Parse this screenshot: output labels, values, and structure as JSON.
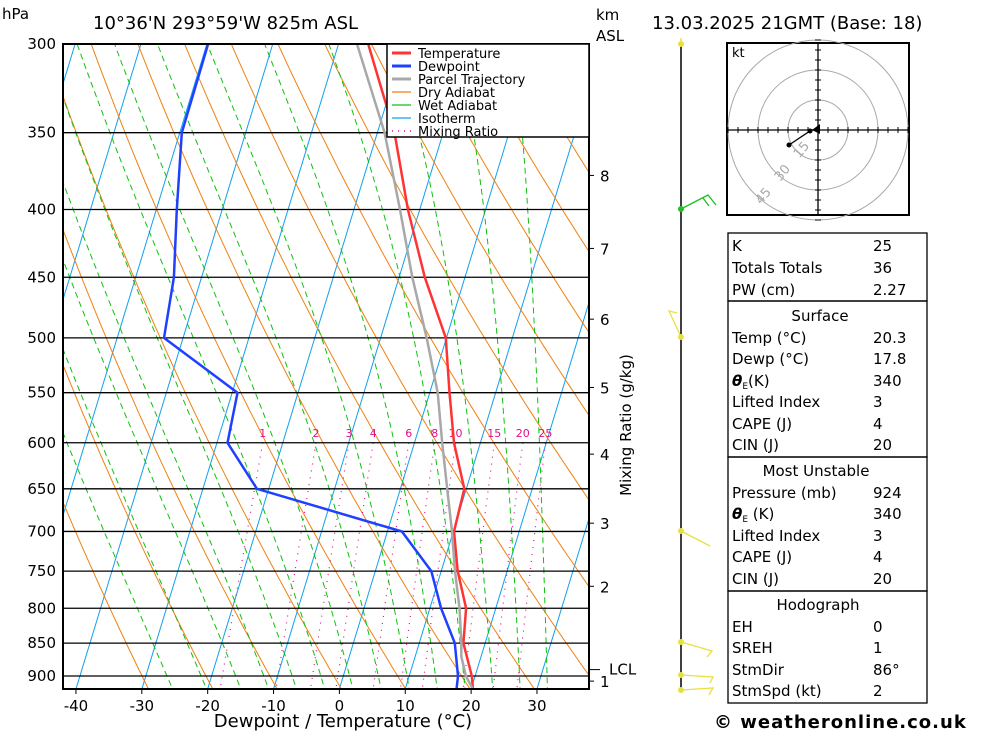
{
  "header": {
    "pressure_unit": "hPa",
    "location": "10°36'N 293°59'W 825m ASL",
    "height_unit": "km",
    "height_ref": "ASL",
    "datetime": "13.03.2025 21GMT (Base: 18)"
  },
  "colors": {
    "temperature": "#ff3333",
    "dewpoint": "#2040ff",
    "parcel": "#a8a8a8",
    "dry_adiabat": "#f08010",
    "wet_adiabat": "#10c010",
    "isotherm": "#10a0f0",
    "mixing_ratio": "#e0108a",
    "wind_low": "#e8e040",
    "wind_high": "#20c020"
  },
  "chart_data": {
    "type": "line",
    "title": "10°36'N 293°59'W 825m ASL",
    "xlabel": "Dewpoint / Temperature (°C)",
    "ylabel": "hPa",
    "y2label": "Mixing Ratio (g/kg)",
    "xlim": [
      -43,
      38
    ],
    "ylim": [
      921,
      300
    ],
    "x_ticks": [
      -40,
      -30,
      -20,
      -10,
      0,
      10,
      20,
      30
    ],
    "pressure_ticks": [
      300,
      350,
      400,
      450,
      500,
      550,
      600,
      650,
      700,
      750,
      800,
      850,
      900
    ],
    "km_ticks": [
      {
        "km": "8",
        "p": 377
      },
      {
        "km": "7",
        "p": 428
      },
      {
        "km": "6",
        "p": 484
      },
      {
        "km": "5",
        "p": 545
      },
      {
        "km": "4",
        "p": 612
      },
      {
        "km": "3",
        "p": 690
      },
      {
        "km": "2",
        "p": 770
      },
      {
        "km": "1",
        "p": 908
      }
    ],
    "lcl": {
      "label": "LCL",
      "p": 890
    },
    "legend": {
      "placement": "top-right",
      "entries": [
        "Temperature",
        "Dewpoint",
        "Parcel Trajectory",
        "Dry Adiabat",
        "Wet Adiabat",
        "Isotherm",
        "Mixing Ratio"
      ]
    },
    "series": [
      {
        "name": "Temperature",
        "p": [
          921,
          900,
          850,
          800,
          750,
          700,
          650,
          600,
          550,
          500,
          450,
          400,
          350,
          300
        ],
        "t": [
          20.3,
          19.5,
          16.7,
          15.5,
          12.5,
          10.1,
          9.7,
          6.0,
          3.0,
          -0.1,
          -6.1,
          -11.8,
          -17.4,
          -25.5
        ]
      },
      {
        "name": "Dewpoint",
        "p": [
          921,
          900,
          850,
          800,
          750,
          700,
          650,
          600,
          550,
          500,
          450,
          400,
          350,
          300
        ],
        "t": [
          17.8,
          17.4,
          15.4,
          11.7,
          8.5,
          2.2,
          -21.8,
          -28.4,
          -29.2,
          -42.9,
          -44.2,
          -46.9,
          -49.7,
          -49.8
        ]
      },
      {
        "name": "Parcel Trajectory",
        "p": [
          921,
          900,
          870,
          850,
          800,
          750,
          700,
          650,
          600,
          550,
          500,
          450,
          400,
          350,
          300
        ],
        "t": [
          20.3,
          18.6,
          17.0,
          16.4,
          14.5,
          12.1,
          9.8,
          7.1,
          4.2,
          1.2,
          -3.0,
          -8.0,
          -13.0,
          -18.9,
          -27.2
        ]
      }
    ],
    "isotherms": [
      -110,
      -100,
      -90,
      -80,
      -70,
      -60,
      -50,
      -40,
      -30,
      -20,
      -10,
      0,
      10,
      20,
      30,
      40
    ],
    "dry_adiabats_theta_k": [
      250,
      260,
      270,
      280,
      290,
      300,
      310,
      320,
      330,
      340,
      350,
      360,
      370,
      380,
      390,
      400,
      410,
      420,
      430,
      440
    ],
    "wet_adiabats_t1000": [
      -20,
      -15,
      -10,
      -6,
      -2,
      2,
      6,
      10,
      14,
      18,
      22,
      26,
      30,
      34
    ],
    "mixing_ratio_lines": {
      "values": [
        1,
        2,
        3,
        4,
        6,
        8,
        10,
        15,
        20,
        25
      ],
      "labels": [
        "1",
        "2",
        "3",
        "4",
        "6",
        "8",
        "10",
        "15",
        "20",
        "25"
      ],
      "from_p": 600
    }
  },
  "hodograph": {
    "unit": "kt",
    "rings": [
      "15",
      "30",
      "45"
    ]
  },
  "indices": {
    "general": [
      {
        "label": "K",
        "value": "25"
      },
      {
        "label": "Totals Totals",
        "value": "36"
      },
      {
        "label": "PW (cm)",
        "value": "2.27"
      }
    ],
    "surface": {
      "title": "Surface",
      "temp": {
        "label": "Temp (°C)",
        "value": "20.3"
      },
      "dewp": {
        "label": "Dewp (°C)",
        "value": "17.8"
      },
      "theta_e": {
        "sym": "θ",
        "sub": "E",
        "rest": "(K)",
        "value": "340"
      },
      "li": {
        "label": "Lifted Index",
        "value": "3"
      },
      "cape": {
        "label": "CAPE (J)",
        "value": "4"
      },
      "cin": {
        "label": "CIN (J)",
        "value": "20"
      }
    },
    "most_unstable": {
      "title": "Most Unstable",
      "pressure": {
        "label": "Pressure (mb)",
        "value": "924"
      },
      "theta_e": {
        "sym": "θ",
        "sub": "E",
        "rest": " (K)",
        "value": "340"
      },
      "li": {
        "label": "Lifted Index",
        "value": "3"
      },
      "cape": {
        "label": "CAPE (J)",
        "value": "4"
      },
      "cin": {
        "label": "CIN (J)",
        "value": "20"
      }
    },
    "hodograph": {
      "title": "Hodograph",
      "eh": {
        "label": "EH",
        "value": "0"
      },
      "sreh": {
        "label": "SREH",
        "value": "1"
      },
      "stmdir": {
        "label": "StmDir",
        "value": "86°"
      },
      "stmspd": {
        "label": "StmSpd (kt)",
        "value": "2"
      }
    }
  },
  "footer": {
    "copyright": "© weatheronline.co.uk"
  }
}
